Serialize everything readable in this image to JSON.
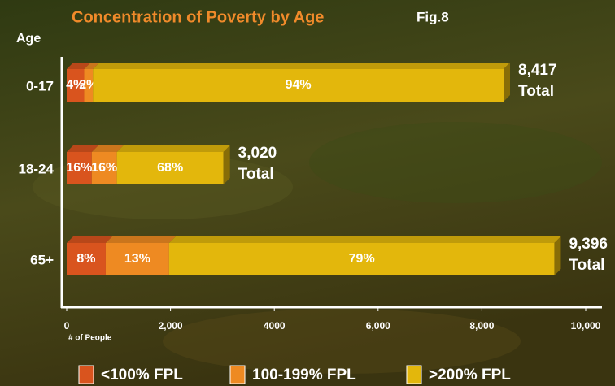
{
  "chart_data": {
    "type": "bar",
    "orientation": "horizontal",
    "stacked": true,
    "title": "Concentration of Poverty by Age",
    "figure_label": "Fig.8",
    "y_axis_label": "Age",
    "x_axis_label": "# of People",
    "categories": [
      "0-17",
      "18-24",
      "65+"
    ],
    "series": [
      {
        "name": "<100% FPL",
        "color": "#d9541e",
        "values": [
          4,
          16,
          8
        ],
        "value_labels": [
          "4%",
          "16%",
          "8%"
        ]
      },
      {
        "name": "100-199% FPL",
        "color": "#ee8a22",
        "values": [
          2,
          16,
          13
        ],
        "value_labels": [
          "2%",
          "16%",
          "13%"
        ]
      },
      {
        "name": ">200% FPL",
        "color": "#e3b70c",
        "values": [
          94,
          68,
          79
        ],
        "value_labels": [
          "94%",
          "68%",
          "79%"
        ]
      }
    ],
    "totals": {
      "label": "Total",
      "values": [
        8417,
        3020,
        9396
      ],
      "value_labels": [
        "8,417",
        "3,020",
        "9,396"
      ]
    },
    "xlim": [
      0,
      10000
    ],
    "xticks": [
      0,
      {
        "value": 2000,
        "label": "2,000"
      },
      4000,
      {
        "value": 6000,
        "label": "6,000"
      },
      {
        "value": 8000,
        "label": "8,000"
      },
      {
        "value": 10000,
        "label": "10,000"
      }
    ]
  }
}
